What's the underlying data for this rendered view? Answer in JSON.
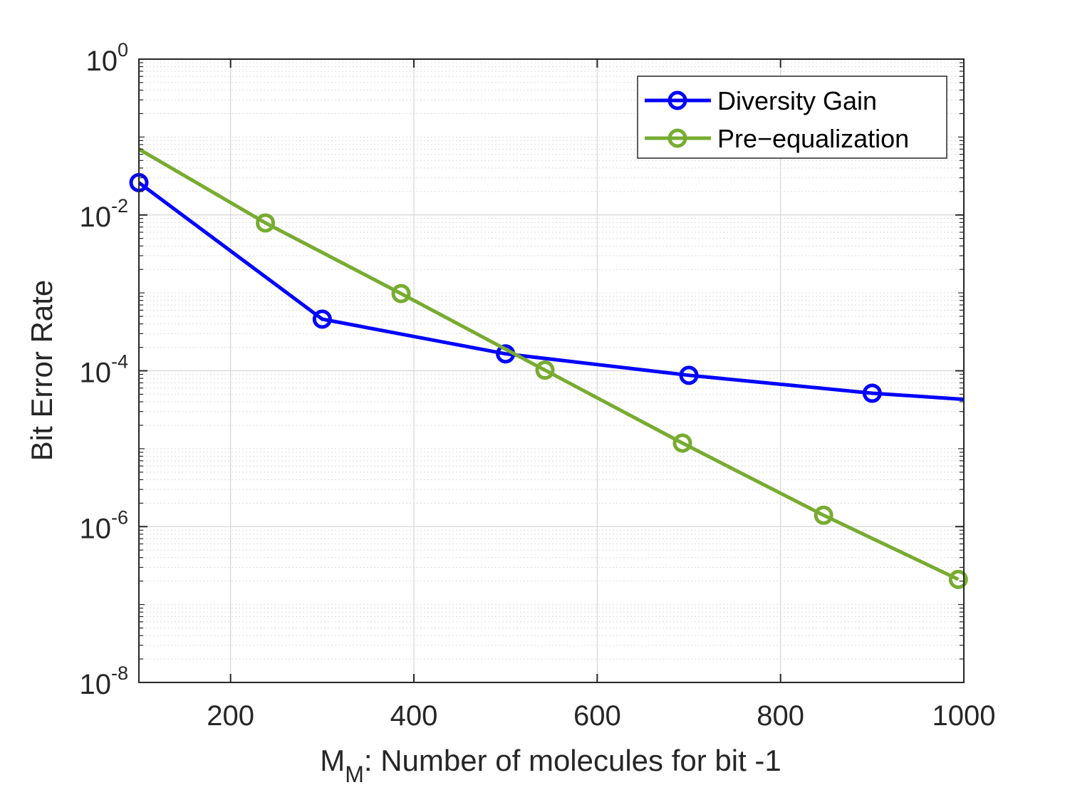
{
  "chart_data": {
    "type": "line",
    "xlabel": {
      "main": "M",
      "subscript": "M",
      "rest": ": Number of molecules for bit -1"
    },
    "ylabel": "Bit Error Rate",
    "xlim": [
      100,
      1000
    ],
    "ylim": [
      1e-08,
      1
    ],
    "yscale": "log",
    "grid": true,
    "minor_grid": true,
    "legend_position": "top-right",
    "xticks": [
      200,
      400,
      600,
      800,
      1000
    ],
    "xtick_labels": [
      "200",
      "400",
      "600",
      "800",
      "1000"
    ],
    "yticks": [
      {
        "value": 1,
        "base": "10",
        "exp": "0"
      },
      {
        "value": 0.01,
        "base": "10",
        "exp": "-2"
      },
      {
        "value": 0.0001,
        "base": "10",
        "exp": "-4"
      },
      {
        "value": 1e-06,
        "base": "10",
        "exp": "-6"
      },
      {
        "value": 1e-08,
        "base": "10",
        "exp": "-8"
      }
    ],
    "series": [
      {
        "name": "Diversity Gain",
        "color": "#0000ff",
        "line": [
          [
            100,
            0.026
          ],
          [
            300,
            0.00046
          ],
          [
            500,
            0.000165
          ],
          [
            700,
            8.75e-05
          ],
          [
            900,
            5.15e-05
          ],
          [
            1000,
            4.3e-05
          ]
        ],
        "markers": [
          [
            100,
            0.026
          ],
          [
            300,
            0.00046
          ],
          [
            500,
            0.000165
          ],
          [
            700,
            8.75e-05
          ],
          [
            900,
            5.15e-05
          ]
        ]
      },
      {
        "name": "Pre−equalization",
        "color": "#77ac30",
        "line": [
          [
            100,
            0.07
          ],
          [
            238,
            0.0079
          ],
          [
            386,
            0.00098
          ],
          [
            543,
            0.000102
          ],
          [
            693,
            1.18e-05
          ],
          [
            847,
            1.4e-06
          ],
          [
            994,
            2.1e-07
          ]
        ],
        "markers": [
          [
            238,
            0.0079
          ],
          [
            386,
            0.00098
          ],
          [
            543,
            0.000102
          ],
          [
            693,
            1.18e-05
          ],
          [
            847,
            1.4e-06
          ],
          [
            994,
            2.1e-07
          ]
        ]
      }
    ]
  }
}
